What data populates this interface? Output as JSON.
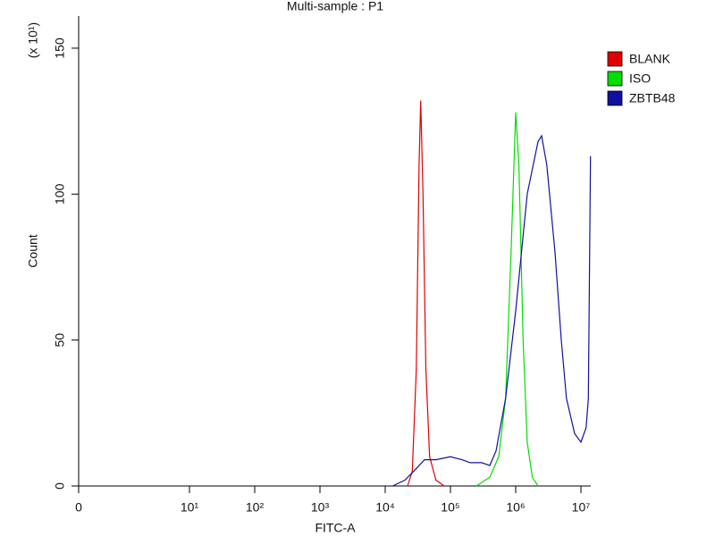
{
  "chart_data": {
    "type": "line",
    "title": "Multi-sample : P1",
    "x_label": "FITC-A",
    "y_label": "Count",
    "y_unit_label": "(x 10¹)",
    "x_scale": "log",
    "xlim": [
      0,
      14000000
    ],
    "ylim": [
      0,
      161
    ],
    "xticks": [
      0,
      {
        "value": 10,
        "label": "10¹"
      },
      {
        "value": 100,
        "label": "10²"
      },
      {
        "value": 1000,
        "label": "10³"
      },
      {
        "value": 10000,
        "label": "10⁴"
      },
      {
        "value": 100000,
        "label": "10⁵"
      },
      {
        "value": 1000000,
        "label": "10⁶"
      },
      {
        "value": 10000000,
        "label": "10⁷"
      }
    ],
    "yticks": [
      0,
      50,
      100,
      150
    ],
    "grid": false,
    "legend": "right",
    "series": [
      {
        "name": "BLANK",
        "color": "#e00000",
        "x": [
          22000,
          26000,
          30000,
          33000,
          35000,
          38000,
          42000,
          48000,
          60000,
          80000
        ],
        "values": [
          0,
          5,
          40,
          110,
          132,
          100,
          40,
          10,
          2,
          0
        ]
      },
      {
        "name": "ISO",
        "color": "#00dd00",
        "x": [
          250000,
          400000,
          550000,
          700000,
          850000,
          1000000,
          1120000,
          1300000,
          1500000,
          1800000,
          2200000
        ],
        "values": [
          0,
          3,
          10,
          30,
          80,
          128,
          110,
          50,
          15,
          3,
          0
        ]
      },
      {
        "name": "ZBTB48",
        "color": "#1010a0",
        "x": [
          13000,
          20000,
          30000,
          40000,
          60000,
          100000,
          150000,
          200000,
          300000,
          400000,
          500000,
          700000,
          1000000,
          1500000,
          2200000,
          2500000,
          3000000,
          4000000,
          5000000,
          6000000,
          8000000,
          10000000,
          12000000,
          13000000,
          14000000
        ],
        "values": [
          0,
          2,
          6,
          9,
          9,
          10,
          9,
          8,
          8,
          7,
          12,
          30,
          60,
          100,
          118,
          120,
          110,
          80,
          50,
          30,
          18,
          15,
          20,
          30,
          113
        ]
      }
    ]
  }
}
